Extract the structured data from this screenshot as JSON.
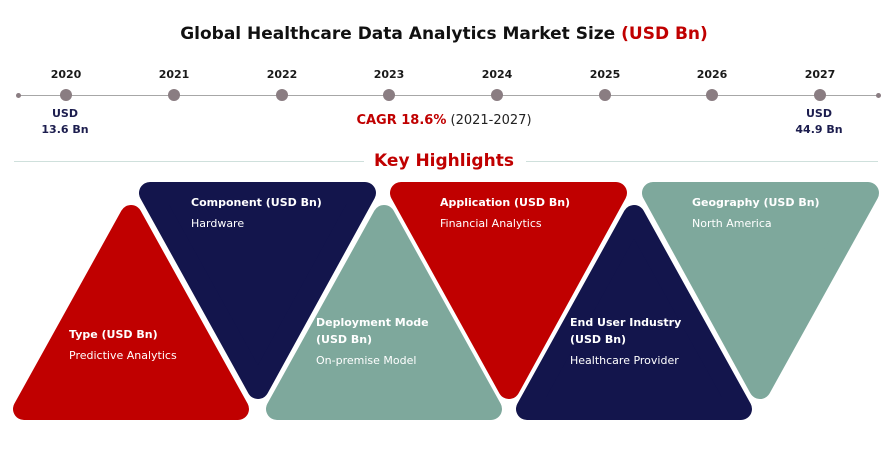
{
  "title": {
    "main": "Global Healthcare Data Analytics Market Size",
    "unit": "(USD Bn)"
  },
  "timeline": {
    "years": [
      "2020",
      "2021",
      "2022",
      "2023",
      "2024",
      "2025",
      "2026",
      "2027"
    ],
    "start_value": {
      "currency": "USD",
      "amount": "13.6 Bn"
    },
    "end_value": {
      "currency": "USD",
      "amount": "44.9 Bn"
    },
    "cagr": {
      "label": "CAGR 18.6%",
      "period": "(2021-2027)"
    }
  },
  "highlights": {
    "heading": "Key Highlights",
    "cards": [
      {
        "title": "Type (USD Bn)",
        "value": "Predictive Analytics"
      },
      {
        "title": "Component (USD Bn)",
        "value": "Hardware"
      },
      {
        "title": "Deployment Mode (USD Bn)",
        "value": "On-premise Model"
      },
      {
        "title": "Application (USD Bn)",
        "value": "Financial Analytics"
      },
      {
        "title": "End User Industry (USD Bn)",
        "value": "Healthcare Provider"
      },
      {
        "title": "Geography (USD Bn)",
        "value": "North America"
      }
    ]
  },
  "colors": {
    "red": "#c00000",
    "navy": "#13154c",
    "teal": "#7ea89c",
    "timeline_dot": "#8a7d82"
  }
}
